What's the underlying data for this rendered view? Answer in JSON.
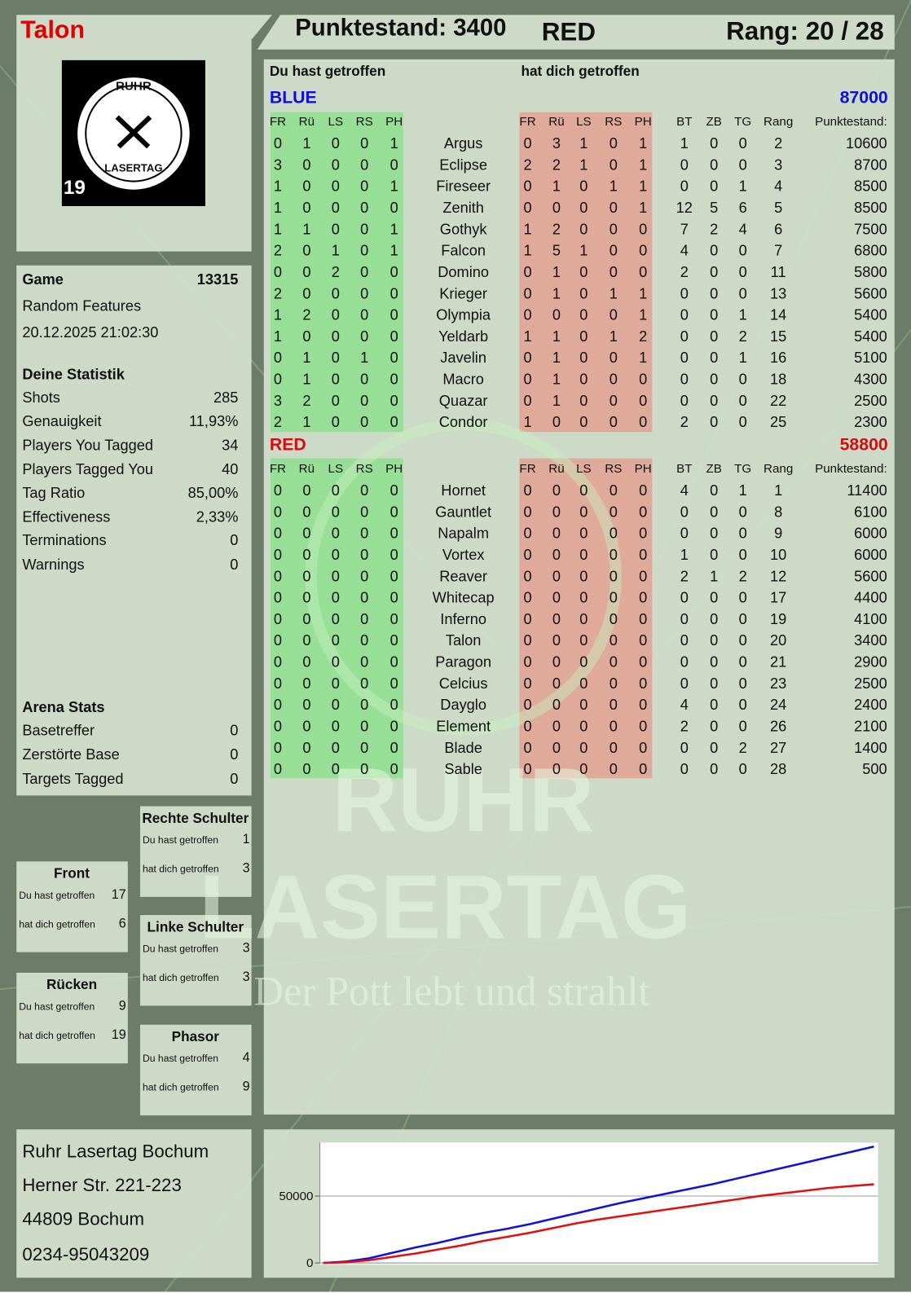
{
  "header": {
    "player": "Talon",
    "score": "Punktestand: 3400",
    "team": "RED",
    "rank": "Rang: 20 / 28"
  },
  "logo": {
    "top": "RUHR",
    "bottom": "LASERTAG",
    "badge": "19"
  },
  "watermark": {
    "line1": "RUHR",
    "line2": "LASERTAG",
    "slogan": "Der Pott lebt und strahlt"
  },
  "game": {
    "label": "Game",
    "id": "13315",
    "mode": "Random Features",
    "date": "20.12.2025 21:02:30"
  },
  "statistics": {
    "title": "Deine Statistik",
    "items": [
      [
        "Shots",
        "285"
      ],
      [
        "Genauigkeit",
        "11,93%"
      ],
      [
        "Players You Tagged",
        "34"
      ],
      [
        "Players Tagged You",
        "40"
      ],
      [
        "Tag Ratio",
        "85,00%"
      ],
      [
        "Effectiveness",
        "2,33%"
      ],
      [
        "Terminations",
        "0"
      ],
      [
        "Warnings",
        "0"
      ]
    ]
  },
  "arena": {
    "title": "Arena Stats",
    "items": [
      [
        "Basetreffer",
        "0"
      ],
      [
        "Zerstörte Base",
        "0"
      ],
      [
        "Targets Tagged",
        "0"
      ]
    ]
  },
  "hit_zones": [
    {
      "title": "Rechte Schulter",
      "given_label": "Du hast getroffen",
      "given": 1,
      "taken_label": "hat dich getroffen",
      "taken": 3
    },
    {
      "title": "Front",
      "given_label": "Du hast getroffen",
      "given": 17,
      "taken_label": "hat dich getroffen",
      "taken": 6
    },
    {
      "title": "Linke Schulter",
      "given_label": "Du hast getroffen",
      "given": 3,
      "taken_label": "hat dich getroffen",
      "taken": 3
    },
    {
      "title": "Rücken",
      "given_label": "Du hast getroffen",
      "given": 9,
      "taken_label": "hat dich getroffen",
      "taken": 19
    },
    {
      "title": "Phasor",
      "given_label": "Du hast getroffen",
      "given": 4,
      "taken_label": "hat dich getroffen",
      "taken": 9
    }
  ],
  "address": [
    "Ruhr Lasertag Bochum",
    "Herner Str. 221-223",
    "44809 Bochum",
    "0234-95043209"
  ],
  "table": {
    "given_title": "Du hast getroffen",
    "taken_title": "hat dich getroffen",
    "columns": [
      "FR",
      "Rü",
      "LS",
      "RS",
      "PH",
      "FR",
      "Rü",
      "LS",
      "RS",
      "PH",
      "BT",
      "ZB",
      "TG",
      "Rang",
      "Punktestand:"
    ],
    "teams": [
      {
        "name": "BLUE",
        "color": "#1010d0",
        "score": "87000",
        "rows": [
          [
            "Argus",
            0,
            1,
            0,
            0,
            1,
            0,
            3,
            1,
            0,
            1,
            1,
            0,
            0,
            2,
            10600
          ],
          [
            "Eclipse",
            3,
            0,
            0,
            0,
            0,
            2,
            2,
            1,
            0,
            1,
            0,
            0,
            0,
            3,
            8700
          ],
          [
            "Fireseer",
            1,
            0,
            0,
            0,
            1,
            0,
            1,
            0,
            1,
            1,
            0,
            0,
            1,
            4,
            8500
          ],
          [
            "Zenith",
            1,
            0,
            0,
            0,
            0,
            0,
            0,
            0,
            0,
            1,
            12,
            5,
            6,
            5,
            8500
          ],
          [
            "Gothyk",
            1,
            1,
            0,
            0,
            1,
            1,
            2,
            0,
            0,
            0,
            7,
            2,
            4,
            6,
            7500
          ],
          [
            "Falcon",
            2,
            0,
            1,
            0,
            1,
            1,
            5,
            1,
            0,
            0,
            4,
            0,
            0,
            7,
            6800
          ],
          [
            "Domino",
            0,
            0,
            2,
            0,
            0,
            0,
            1,
            0,
            0,
            0,
            2,
            0,
            0,
            11,
            5800
          ],
          [
            "Krieger",
            2,
            0,
            0,
            0,
            0,
            0,
            1,
            0,
            1,
            1,
            0,
            0,
            0,
            13,
            5600
          ],
          [
            "Olympia",
            1,
            2,
            0,
            0,
            0,
            0,
            0,
            0,
            0,
            1,
            0,
            0,
            1,
            14,
            5400
          ],
          [
            "Yeldarb",
            1,
            0,
            0,
            0,
            0,
            1,
            1,
            0,
            1,
            2,
            0,
            0,
            2,
            15,
            5400
          ],
          [
            "Javelin",
            0,
            1,
            0,
            1,
            0,
            0,
            1,
            0,
            0,
            1,
            0,
            0,
            1,
            16,
            5100
          ],
          [
            "Macro",
            0,
            1,
            0,
            0,
            0,
            0,
            1,
            0,
            0,
            0,
            0,
            0,
            0,
            18,
            4300
          ],
          [
            "Quazar",
            3,
            2,
            0,
            0,
            0,
            0,
            1,
            0,
            0,
            0,
            0,
            0,
            0,
            22,
            2500
          ],
          [
            "Condor",
            2,
            1,
            0,
            0,
            0,
            1,
            0,
            0,
            0,
            0,
            2,
            0,
            0,
            25,
            2300
          ]
        ]
      },
      {
        "name": "RED",
        "color": "#d01010",
        "score": "58800",
        "rows": [
          [
            "Hornet",
            0,
            0,
            0,
            0,
            0,
            0,
            0,
            0,
            0,
            0,
            4,
            0,
            1,
            1,
            11400
          ],
          [
            "Gauntlet",
            0,
            0,
            0,
            0,
            0,
            0,
            0,
            0,
            0,
            0,
            0,
            0,
            0,
            8,
            6100
          ],
          [
            "Napalm",
            0,
            0,
            0,
            0,
            0,
            0,
            0,
            0,
            0,
            0,
            0,
            0,
            0,
            9,
            6000
          ],
          [
            "Vortex",
            0,
            0,
            0,
            0,
            0,
            0,
            0,
            0,
            0,
            0,
            1,
            0,
            0,
            10,
            6000
          ],
          [
            "Reaver",
            0,
            0,
            0,
            0,
            0,
            0,
            0,
            0,
            0,
            0,
            2,
            1,
            2,
            12,
            5600
          ],
          [
            "Whitecap",
            0,
            0,
            0,
            0,
            0,
            0,
            0,
            0,
            0,
            0,
            0,
            0,
            0,
            17,
            4400
          ],
          [
            "Inferno",
            0,
            0,
            0,
            0,
            0,
            0,
            0,
            0,
            0,
            0,
            0,
            0,
            0,
            19,
            4100
          ],
          [
            "Talon",
            0,
            0,
            0,
            0,
            0,
            0,
            0,
            0,
            0,
            0,
            0,
            0,
            0,
            20,
            3400
          ],
          [
            "Paragon",
            0,
            0,
            0,
            0,
            0,
            0,
            0,
            0,
            0,
            0,
            0,
            0,
            0,
            21,
            2900
          ],
          [
            "Celcius",
            0,
            0,
            0,
            0,
            0,
            0,
            0,
            0,
            0,
            0,
            0,
            0,
            0,
            23,
            2500
          ],
          [
            "Dayglo",
            0,
            0,
            0,
            0,
            0,
            0,
            0,
            0,
            0,
            0,
            4,
            0,
            0,
            24,
            2400
          ],
          [
            "Element",
            0,
            0,
            0,
            0,
            0,
            0,
            0,
            0,
            0,
            0,
            2,
            0,
            0,
            26,
            2100
          ],
          [
            "Blade",
            0,
            0,
            0,
            0,
            0,
            0,
            0,
            0,
            0,
            0,
            0,
            0,
            2,
            27,
            1400
          ],
          [
            "Sable",
            0,
            0,
            0,
            0,
            0,
            0,
            0,
            0,
            0,
            0,
            0,
            0,
            0,
            28,
            500
          ]
        ]
      }
    ]
  },
  "chart_data": {
    "type": "line",
    "ylim": [
      0,
      90000
    ],
    "yticks": [
      0,
      50000
    ],
    "grid": true,
    "series": [
      {
        "color": "#1010e0",
        "values": [
          0,
          1000,
          3500,
          7500,
          11500,
          15000,
          19000,
          22500,
          25500,
          29000,
          33000,
          37000,
          41000,
          45000,
          48500,
          52000,
          55500,
          59000,
          63000,
          67000,
          71000,
          75000,
          79000,
          83000,
          87000
        ]
      },
      {
        "color": "#e01010",
        "values": [
          0,
          500,
          2000,
          4500,
          7000,
          10000,
          13000,
          16500,
          19500,
          22500,
          26000,
          29500,
          32500,
          35000,
          37500,
          40000,
          42500,
          45000,
          47500,
          50000,
          52000,
          54000,
          56000,
          57500,
          58800
        ]
      }
    ]
  }
}
